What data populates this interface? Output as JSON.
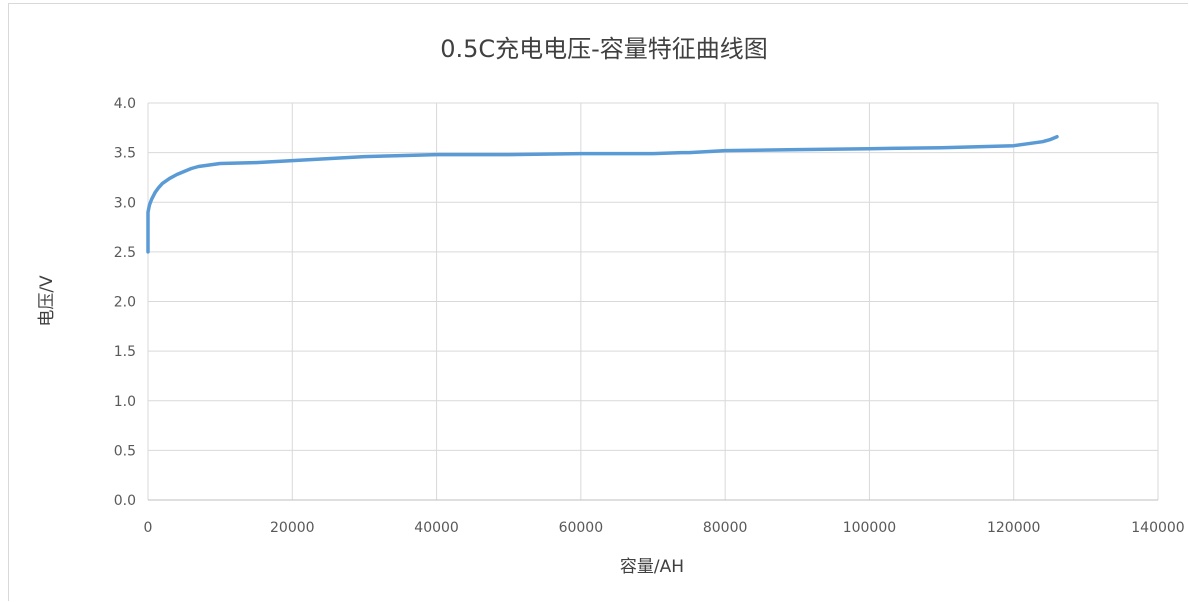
{
  "chart_data": {
    "type": "line",
    "title": "0.5C充电电压-容量特征曲线图",
    "xlabel": "容量/AH",
    "ylabel": "电压/V",
    "xlim": [
      0,
      140000
    ],
    "ylim": [
      0,
      4.0
    ],
    "x_ticks": [
      0,
      20000,
      40000,
      60000,
      80000,
      100000,
      120000,
      140000
    ],
    "y_ticks": [
      "0.0",
      "0.5",
      "1.0",
      "1.5",
      "2.0",
      "2.5",
      "3.0",
      "3.5",
      "4.0"
    ],
    "grid": true,
    "legend": "none",
    "series": [
      {
        "color": "#5b9bd5",
        "x": [
          0,
          0,
          200,
          500,
          1000,
          1500,
          2000,
          3000,
          4000,
          5000,
          6000,
          7000,
          8000,
          9000,
          10000,
          15000,
          20000,
          25000,
          30000,
          35000,
          40000,
          50000,
          60000,
          70000,
          74000,
          75000,
          80000,
          90000,
          100000,
          110000,
          115000,
          120000,
          122000,
          124000,
          125000,
          126000
        ],
        "y": [
          2.5,
          2.9,
          2.97,
          3.03,
          3.1,
          3.15,
          3.19,
          3.24,
          3.28,
          3.31,
          3.34,
          3.36,
          3.37,
          3.38,
          3.39,
          3.4,
          3.42,
          3.44,
          3.46,
          3.47,
          3.48,
          3.48,
          3.49,
          3.49,
          3.5,
          3.5,
          3.52,
          3.53,
          3.54,
          3.55,
          3.56,
          3.57,
          3.59,
          3.61,
          3.63,
          3.66
        ]
      }
    ]
  }
}
